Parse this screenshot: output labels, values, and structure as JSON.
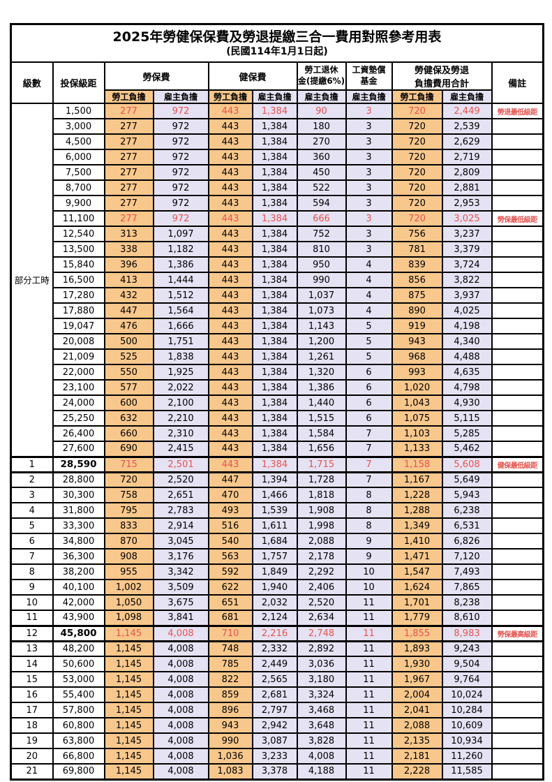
{
  "title": "2025年勞健保保費及勞退提繳三合一費用對照參考用表",
  "subtitle": "(民國114年1月1日起)",
  "colors": {
    "employee_bg": "#F8C78C",
    "employer_bg": "#E4E2F3",
    "red_text": "#E8534E"
  },
  "header": {
    "level": "級數",
    "bracket": "投保級距",
    "labor_fee": "勞保費",
    "health_fee": "健保費",
    "pension_line1": "勞工退休",
    "pension_line2": "金(提繳6%)",
    "wage_fund_line1": "工資墊償",
    "wage_fund_line2": "基金",
    "total_line1": "勞健保及勞退",
    "total_line2": "負擔費用合計",
    "remark": "備註",
    "employee": "勞工負擔",
    "employer": "雇主負擔"
  },
  "table": {
    "part_time_label": "部分工時",
    "rows": [
      {
        "level": null,
        "bracket": "1,500",
        "values": [
          "277",
          "972",
          "443",
          "1,384",
          "90",
          "3",
          "720",
          "2,449"
        ],
        "remark": "勞退最低級距",
        "highlight": true
      },
      {
        "level": null,
        "bracket": "3,000",
        "values": [
          "277",
          "972",
          "443",
          "1,384",
          "180",
          "3",
          "720",
          "2,539"
        ]
      },
      {
        "level": null,
        "bracket": "4,500",
        "values": [
          "277",
          "972",
          "443",
          "1,384",
          "270",
          "3",
          "720",
          "2,629"
        ]
      },
      {
        "level": null,
        "bracket": "6,000",
        "values": [
          "277",
          "972",
          "443",
          "1,384",
          "360",
          "3",
          "720",
          "2,719"
        ]
      },
      {
        "level": null,
        "bracket": "7,500",
        "values": [
          "277",
          "972",
          "443",
          "1,384",
          "450",
          "3",
          "720",
          "2,809"
        ]
      },
      {
        "level": null,
        "bracket": "8,700",
        "values": [
          "277",
          "972",
          "443",
          "1,384",
          "522",
          "3",
          "720",
          "2,881"
        ]
      },
      {
        "level": null,
        "bracket": "9,900",
        "values": [
          "277",
          "972",
          "443",
          "1,384",
          "594",
          "3",
          "720",
          "2,953"
        ]
      },
      {
        "level": null,
        "bracket": "11,100",
        "values": [
          "277",
          "972",
          "443",
          "1,384",
          "666",
          "3",
          "720",
          "3,025"
        ],
        "remark": "勞保最低級距",
        "highlight": true
      },
      {
        "level": null,
        "bracket": "12,540",
        "values": [
          "313",
          "1,097",
          "443",
          "1,384",
          "752",
          "3",
          "756",
          "3,237"
        ]
      },
      {
        "level": null,
        "bracket": "13,500",
        "values": [
          "338",
          "1,182",
          "443",
          "1,384",
          "810",
          "3",
          "781",
          "3,379"
        ]
      },
      {
        "level": null,
        "bracket": "15,840",
        "values": [
          "396",
          "1,386",
          "443",
          "1,384",
          "950",
          "4",
          "839",
          "3,724"
        ]
      },
      {
        "level": null,
        "bracket": "16,500",
        "values": [
          "413",
          "1,444",
          "443",
          "1,384",
          "990",
          "4",
          "856",
          "3,822"
        ]
      },
      {
        "level": null,
        "bracket": "17,280",
        "values": [
          "432",
          "1,512",
          "443",
          "1,384",
          "1,037",
          "4",
          "875",
          "3,937"
        ]
      },
      {
        "level": null,
        "bracket": "17,880",
        "values": [
          "447",
          "1,564",
          "443",
          "1,384",
          "1,073",
          "4",
          "890",
          "4,025"
        ]
      },
      {
        "level": null,
        "bracket": "19,047",
        "values": [
          "476",
          "1,666",
          "443",
          "1,384",
          "1,143",
          "5",
          "919",
          "4,198"
        ]
      },
      {
        "level": null,
        "bracket": "20,008",
        "values": [
          "500",
          "1,751",
          "443",
          "1,384",
          "1,200",
          "5",
          "943",
          "4,340"
        ]
      },
      {
        "level": null,
        "bracket": "21,009",
        "values": [
          "525",
          "1,838",
          "443",
          "1,384",
          "1,261",
          "5",
          "968",
          "4,488"
        ]
      },
      {
        "level": null,
        "bracket": "22,000",
        "values": [
          "550",
          "1,925",
          "443",
          "1,384",
          "1,320",
          "6",
          "993",
          "4,635"
        ]
      },
      {
        "level": null,
        "bracket": "23,100",
        "values": [
          "577",
          "2,022",
          "443",
          "1,384",
          "1,386",
          "6",
          "1,020",
          "4,798"
        ]
      },
      {
        "level": null,
        "bracket": "24,000",
        "values": [
          "600",
          "2,100",
          "443",
          "1,384",
          "1,440",
          "6",
          "1,043",
          "4,930"
        ]
      },
      {
        "level": null,
        "bracket": "25,250",
        "values": [
          "632",
          "2,210",
          "443",
          "1,384",
          "1,515",
          "6",
          "1,075",
          "5,115"
        ]
      },
      {
        "level": null,
        "bracket": "26,400",
        "values": [
          "660",
          "2,310",
          "443",
          "1,384",
          "1,584",
          "7",
          "1,103",
          "5,285"
        ]
      },
      {
        "level": null,
        "bracket": "27,600",
        "values": [
          "690",
          "2,415",
          "443",
          "1,384",
          "1,656",
          "7",
          "1,133",
          "5,462"
        ]
      },
      {
        "level": "1",
        "bracket": "28,590",
        "values": [
          "715",
          "2,501",
          "443",
          "1,384",
          "1,715",
          "7",
          "1,158",
          "5,608"
        ],
        "remark": "健保最低級距",
        "highlight": true,
        "emphasis": true
      },
      {
        "level": "2",
        "bracket": "28,800",
        "values": [
          "720",
          "2,520",
          "447",
          "1,394",
          "1,728",
          "7",
          "1,167",
          "5,649"
        ]
      },
      {
        "level": "3",
        "bracket": "30,300",
        "values": [
          "758",
          "2,651",
          "470",
          "1,466",
          "1,818",
          "8",
          "1,228",
          "5,943"
        ]
      },
      {
        "level": "4",
        "bracket": "31,800",
        "values": [
          "795",
          "2,783",
          "493",
          "1,539",
          "1,908",
          "8",
          "1,288",
          "6,238"
        ]
      },
      {
        "level": "5",
        "bracket": "33,300",
        "values": [
          "833",
          "2,914",
          "516",
          "1,611",
          "1,998",
          "8",
          "1,349",
          "6,531"
        ]
      },
      {
        "level": "6",
        "bracket": "34,800",
        "values": [
          "870",
          "3,045",
          "540",
          "1,684",
          "2,088",
          "9",
          "1,410",
          "6,826"
        ]
      },
      {
        "level": "7",
        "bracket": "36,300",
        "values": [
          "908",
          "3,176",
          "563",
          "1,757",
          "2,178",
          "9",
          "1,471",
          "7,120"
        ]
      },
      {
        "level": "8",
        "bracket": "38,200",
        "values": [
          "955",
          "3,342",
          "592",
          "1,849",
          "2,292",
          "10",
          "1,547",
          "7,493"
        ]
      },
      {
        "level": "9",
        "bracket": "40,100",
        "values": [
          "1,002",
          "3,509",
          "622",
          "1,940",
          "2,406",
          "10",
          "1,624",
          "7,865"
        ]
      },
      {
        "level": "10",
        "bracket": "42,000",
        "values": [
          "1,050",
          "3,675",
          "651",
          "2,032",
          "2,520",
          "11",
          "1,701",
          "8,238"
        ]
      },
      {
        "level": "11",
        "bracket": "43,900",
        "values": [
          "1,098",
          "3,841",
          "681",
          "2,124",
          "2,634",
          "11",
          "1,779",
          "8,610"
        ]
      },
      {
        "level": "12",
        "bracket": "45,800",
        "values": [
          "1,145",
          "4,008",
          "710",
          "2,216",
          "2,748",
          "11",
          "1,855",
          "8,983"
        ],
        "remark": "勞保最高級距",
        "highlight": true,
        "emphasis": true
      },
      {
        "level": "13",
        "bracket": "48,200",
        "values": [
          "1,145",
          "4,008",
          "748",
          "2,332",
          "2,892",
          "11",
          "1,893",
          "9,243"
        ]
      },
      {
        "level": "14",
        "bracket": "50,600",
        "values": [
          "1,145",
          "4,008",
          "785",
          "2,449",
          "3,036",
          "11",
          "1,930",
          "9,504"
        ]
      },
      {
        "level": "15",
        "bracket": "53,000",
        "values": [
          "1,145",
          "4,008",
          "822",
          "2,565",
          "3,180",
          "11",
          "1,967",
          "9,764"
        ]
      },
      {
        "level": "16",
        "bracket": "55,400",
        "values": [
          "1,145",
          "4,008",
          "859",
          "2,681",
          "3,324",
          "11",
          "2,004",
          "10,024"
        ]
      },
      {
        "level": "17",
        "bracket": "57,800",
        "values": [
          "1,145",
          "4,008",
          "896",
          "2,797",
          "3,468",
          "11",
          "2,041",
          "10,284"
        ]
      },
      {
        "level": "18",
        "bracket": "60,800",
        "values": [
          "1,145",
          "4,008",
          "943",
          "2,942",
          "3,648",
          "11",
          "2,088",
          "10,609"
        ]
      },
      {
        "level": "19",
        "bracket": "63,800",
        "values": [
          "1,145",
          "4,008",
          "990",
          "3,087",
          "3,828",
          "11",
          "2,135",
          "10,934"
        ]
      },
      {
        "level": "20",
        "bracket": "66,800",
        "values": [
          "1,145",
          "4,008",
          "1,036",
          "3,233",
          "4,008",
          "11",
          "2,181",
          "11,260"
        ]
      },
      {
        "level": "21",
        "bracket": "69,800",
        "values": [
          "1,145",
          "4,008",
          "1,083",
          "3,378",
          "4,188",
          "11",
          "2,228",
          "11,585"
        ]
      }
    ]
  }
}
